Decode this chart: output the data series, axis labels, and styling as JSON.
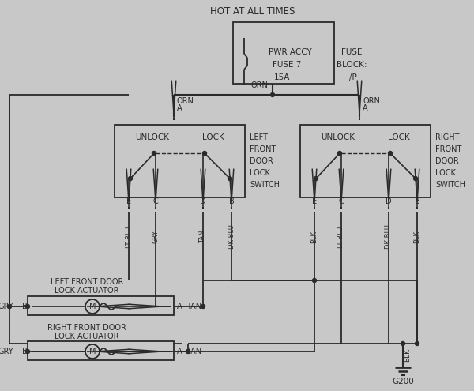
{
  "bg_color": "#c8c8c8",
  "line_color": "#2a2a2a",
  "title": "HOT AT ALL TIMES",
  "fuse_text": [
    "PWR ACCY",
    "FUSE 7",
    "15A"
  ],
  "fuse_side_label": [
    "FUSE",
    "BLOCK:",
    "I/P"
  ],
  "left_switch_label": [
    "LEFT",
    "FRONT",
    "DOOR",
    "LOCK",
    "SWITCH"
  ],
  "right_switch_label": [
    "RIGHT",
    "FRONT",
    "DOOR",
    "LOCK",
    "SWITCH"
  ],
  "ground_label": "G200",
  "wire_labels_left": [
    "LT BLU",
    "GRY",
    "TAN",
    "DK BLU"
  ],
  "wire_labels_right": [
    "BLK",
    "LT BLU",
    "DK BLU",
    "BLK"
  ],
  "font_size": 7.0
}
